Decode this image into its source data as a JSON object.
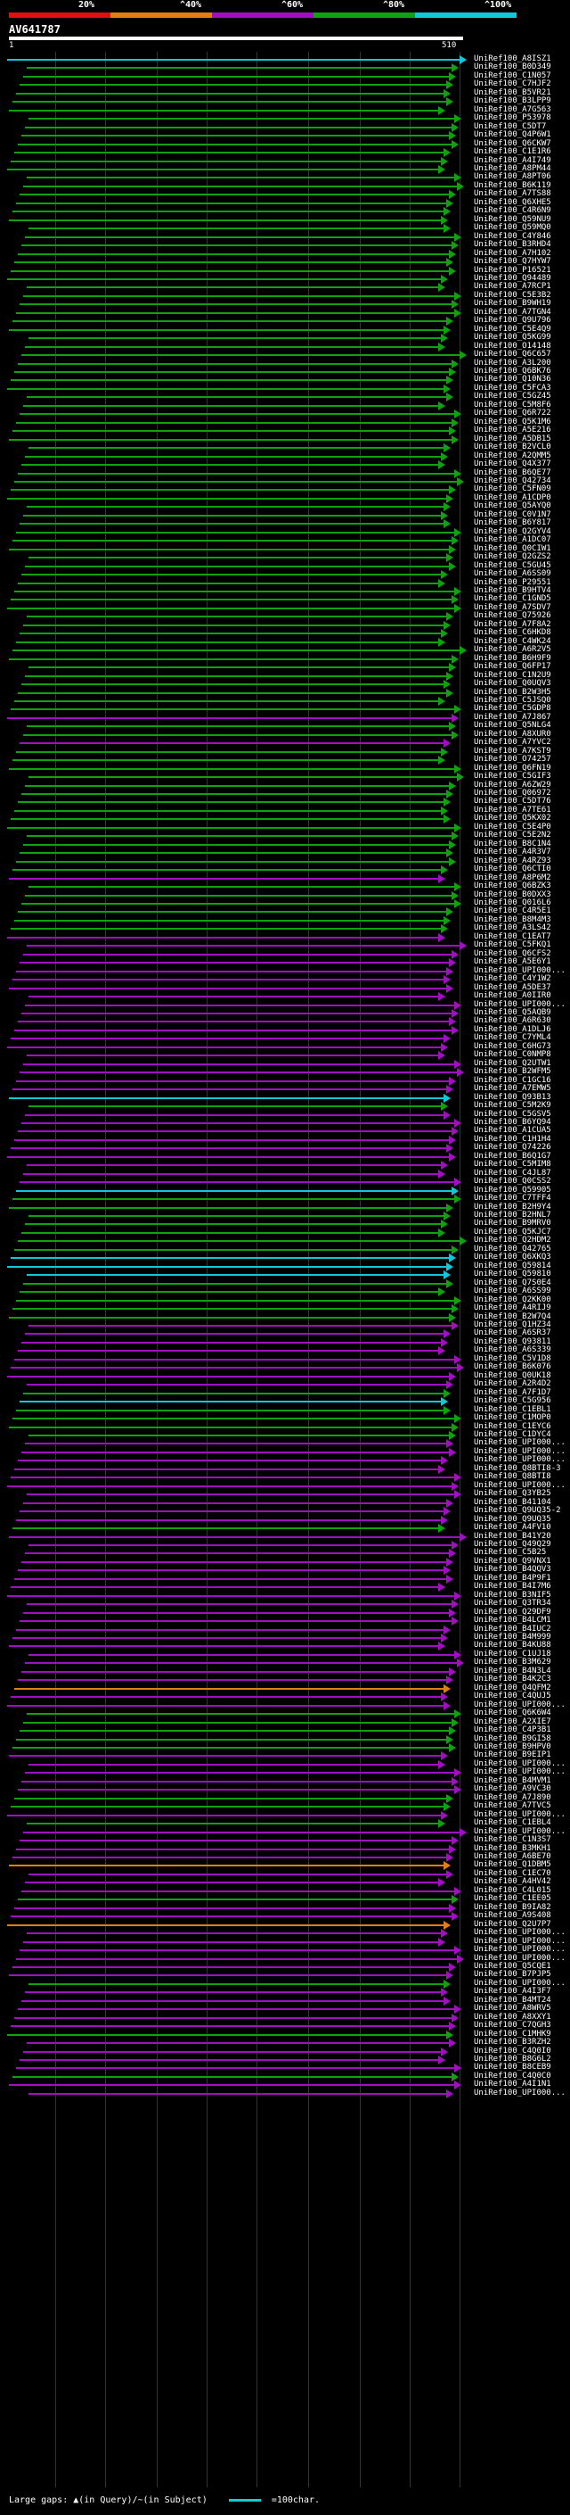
{
  "scale": {
    "labels": [
      "20%",
      "^40%",
      "^60%",
      "^80%",
      "^100%"
    ],
    "colors": [
      "#e01010",
      "#e08010",
      "#a010c0",
      "#10a010",
      "#10c8d8"
    ]
  },
  "query": {
    "accession": "AV641787",
    "start": "1",
    "end": "510"
  },
  "hits": [
    {
      "label": "UniRef100_A8ISZ1",
      "color": "#10c8d8"
    },
    {
      "label": "UniRef100_B0D349",
      "color": "#10a010"
    },
    {
      "label": "UniRef100_C1N057",
      "color": "#10a010"
    },
    {
      "label": "UniRef100_C7HJF2",
      "color": "#10a010"
    },
    {
      "label": "UniRef100_B5VR21",
      "color": "#10a010"
    },
    {
      "label": "UniRef100_B3LPP9",
      "color": "#10a010"
    },
    {
      "label": "UniRef100_A7G563",
      "color": "#10a010"
    },
    {
      "label": "UniRef100_P53978",
      "color": "#10a010"
    },
    {
      "label": "UniRef100_C5DT7",
      "color": "#10a010"
    },
    {
      "label": "UniRef100_Q4P6W1",
      "color": "#10a010"
    },
    {
      "label": "UniRef100_Q6CKW7",
      "color": "#10a010"
    },
    {
      "label": "UniRef100_C1E1R6",
      "color": "#10a010"
    },
    {
      "label": "UniRef100_A4I749",
      "color": "#10a010"
    },
    {
      "label": "UniRef100_A8PM44",
      "color": "#10a010"
    },
    {
      "label": "UniRef100_A8PT06",
      "color": "#10a010"
    },
    {
      "label": "UniRef100_B6K119",
      "color": "#10a010"
    },
    {
      "label": "UniRef100_A7TS88",
      "color": "#10a010"
    },
    {
      "label": "UniRef100_Q6XHE5",
      "color": "#10a010"
    },
    {
      "label": "UniRef100_C4R6N9",
      "color": "#10a010"
    },
    {
      "label": "UniRef100_Q59NU9",
      "color": "#10a010"
    },
    {
      "label": "UniRef100_Q59MQ0",
      "color": "#10a010"
    },
    {
      "label": "UniRef100_C4Y846",
      "color": "#10a010"
    },
    {
      "label": "UniRef100_B3RHD4",
      "color": "#10a010"
    },
    {
      "label": "UniRef100_A7H102",
      "color": "#10a010"
    },
    {
      "label": "UniRef100_Q7HYW7",
      "color": "#10a010"
    },
    {
      "label": "UniRef100_P16521",
      "color": "#10a010"
    },
    {
      "label": "UniRef100_Q94489",
      "color": "#10a010"
    },
    {
      "label": "UniRef100_A7RCP1",
      "color": "#10a010"
    },
    {
      "label": "UniRef100_C5E3B2",
      "color": "#10a010"
    },
    {
      "label": "UniRef100_B9WH19",
      "color": "#10a010"
    },
    {
      "label": "UniRef100_A7TGN4",
      "color": "#10a010"
    },
    {
      "label": "UniRef100_Q9U796",
      "color": "#10a010"
    },
    {
      "label": "UniRef100_C5E4Q9",
      "color": "#10a010"
    },
    {
      "label": "UniRef100_Q5KG99",
      "color": "#10a010"
    },
    {
      "label": "UniRef100_O14148",
      "color": "#10a010"
    },
    {
      "label": "UniRef100_Q6C657",
      "color": "#10a010"
    },
    {
      "label": "UniRef100_A3L200",
      "color": "#10a010"
    },
    {
      "label": "UniRef100_Q6BK76",
      "color": "#10a010"
    },
    {
      "label": "UniRef100_Q10N36",
      "color": "#10a010"
    },
    {
      "label": "UniRef100_C5FCA3",
      "color": "#10a010"
    },
    {
      "label": "UniRef100_C5GZ45",
      "color": "#10a010"
    },
    {
      "label": "UniRef100_C5M8F6",
      "color": "#10a010"
    },
    {
      "label": "UniRef100_Q6R722",
      "color": "#10a010"
    },
    {
      "label": "UniRef100_Q5K1M6",
      "color": "#10a010"
    },
    {
      "label": "UniRef100_A5E216",
      "color": "#10a010"
    },
    {
      "label": "UniRef100_A5DB15",
      "color": "#10a010"
    },
    {
      "label": "UniRef100_B2VCL0",
      "color": "#10a010"
    },
    {
      "label": "UniRef100_A2QMM5",
      "color": "#10a010"
    },
    {
      "label": "UniRef100_Q4X377",
      "color": "#10a010"
    },
    {
      "label": "UniRef100_B6QE77",
      "color": "#10a010"
    },
    {
      "label": "UniRef100_Q42734",
      "color": "#10a010"
    },
    {
      "label": "UniRef100_C5FN09",
      "color": "#10a010"
    },
    {
      "label": "UniRef100_A1CDP0",
      "color": "#10a010"
    },
    {
      "label": "UniRef100_Q5AYQ0",
      "color": "#10a010"
    },
    {
      "label": "UniRef100_C0V1N7",
      "color": "#10a010"
    },
    {
      "label": "UniRef100_B6Y817",
      "color": "#10a010"
    },
    {
      "label": "UniRef100_Q2GYV4",
      "color": "#10a010"
    },
    {
      "label": "UniRef100_A1DC07",
      "color": "#10a010"
    },
    {
      "label": "UniRef100_Q0CIW1",
      "color": "#10a010"
    },
    {
      "label": "UniRef100_Q2GZS2",
      "color": "#10a010"
    },
    {
      "label": "UniRef100_C5GU45",
      "color": "#10a010"
    },
    {
      "label": "UniRef100_A6SS09",
      "color": "#10a010"
    },
    {
      "label": "UniRef100_P29551",
      "color": "#10a010"
    },
    {
      "label": "UniRef100_B9HTV4",
      "color": "#10a010"
    },
    {
      "label": "UniRef100_C1GND5",
      "color": "#10a010"
    },
    {
      "label": "UniRef100_A7SDV7",
      "color": "#10a010"
    },
    {
      "label": "UniRef100_Q75926",
      "color": "#10a010"
    },
    {
      "label": "UniRef100_A7F8A2",
      "color": "#10a010"
    },
    {
      "label": "UniRef100_C6HKD8",
      "color": "#10a010"
    },
    {
      "label": "UniRef100_C4WK24",
      "color": "#10a010"
    },
    {
      "label": "UniRef100_A6R2V5",
      "color": "#10a010"
    },
    {
      "label": "UniRef100_B6H9F9",
      "color": "#10a010"
    },
    {
      "label": "UniRef100_Q6FP17",
      "color": "#10a010"
    },
    {
      "label": "UniRef100_C1N2U9",
      "color": "#10a010"
    },
    {
      "label": "UniRef100_Q0UQV3",
      "color": "#10a010"
    },
    {
      "label": "UniRef100_B2W3H5",
      "color": "#10a010"
    },
    {
      "label": "UniRef100_C5JSQ0",
      "color": "#10a010"
    },
    {
      "label": "UniRef100_C5GDP8",
      "color": "#10a010"
    },
    {
      "label": "UniRef100_A7J867",
      "color": "#a010c0"
    },
    {
      "label": "UniRef100_Q5NLG4",
      "color": "#10a010"
    },
    {
      "label": "UniRef100_A8XUR0",
      "color": "#10a010"
    },
    {
      "label": "UniRef100_A7YVC2",
      "color": "#a010c0"
    },
    {
      "label": "UniRef100_A7KST9",
      "color": "#10a010"
    },
    {
      "label": "UniRef100_O74257",
      "color": "#10a010"
    },
    {
      "label": "UniRef100_Q6FN19",
      "color": "#10a010"
    },
    {
      "label": "UniRef100_C5GIF3",
      "color": "#10a010"
    },
    {
      "label": "UniRef100_A6ZW29",
      "color": "#10a010"
    },
    {
      "label": "UniRef100_Q06972",
      "color": "#10a010"
    },
    {
      "label": "UniRef100_C5DT76",
      "color": "#10a010"
    },
    {
      "label": "UniRef100_A7TE61",
      "color": "#10a010"
    },
    {
      "label": "UniRef100_Q5KX02",
      "color": "#10a010"
    },
    {
      "label": "UniRef100_C5E4P0",
      "color": "#10a010"
    },
    {
      "label": "UniRef100_C5E2N2",
      "color": "#10a010"
    },
    {
      "label": "UniRef100_B8C1N4",
      "color": "#10a010"
    },
    {
      "label": "UniRef100_A4R3V7",
      "color": "#10a010"
    },
    {
      "label": "UniRef100_A4RZ93",
      "color": "#10a010"
    },
    {
      "label": "UniRef100_Q6CTI0",
      "color": "#10a010"
    },
    {
      "label": "UniRef100_A8P6M2",
      "color": "#a010c0"
    },
    {
      "label": "UniRef100_Q6BZK3",
      "color": "#10a010"
    },
    {
      "label": "UniRef100_B0DXX3",
      "color": "#10a010"
    },
    {
      "label": "UniRef100_Q016L6",
      "color": "#10a010"
    },
    {
      "label": "UniRef100_C4R5E1",
      "color": "#10a010"
    },
    {
      "label": "UniRef100_B8M4M3",
      "color": "#10a010"
    },
    {
      "label": "UniRef100_A3LS42",
      "color": "#10a010"
    },
    {
      "label": "UniRef100_C1EAT7",
      "color": "#a010c0"
    },
    {
      "label": "UniRef100_C5FKQ1",
      "color": "#a010c0"
    },
    {
      "label": "UniRef100_Q6CFS2",
      "color": "#a010c0"
    },
    {
      "label": "UniRef100_A5E6Y1",
      "color": "#a010c0"
    },
    {
      "label": "UniRef100_UPI000...",
      "color": "#a010c0"
    },
    {
      "label": "UniRef100_C4Y1W2",
      "color": "#a010c0"
    },
    {
      "label": "UniRef100_A5DE37",
      "color": "#a010c0"
    },
    {
      "label": "UniRef100_A0IIR0",
      "color": "#a010c0"
    },
    {
      "label": "UniRef100_UPI000...",
      "color": "#a010c0"
    },
    {
      "label": "UniRef100_Q5AQB9",
      "color": "#a010c0"
    },
    {
      "label": "UniRef100_A6R630",
      "color": "#a010c0"
    },
    {
      "label": "UniRef100_A1DLJ6",
      "color": "#a010c0"
    },
    {
      "label": "UniRef100_C7YML4",
      "color": "#a010c0"
    },
    {
      "label": "UniRef100_C6HG73",
      "color": "#a010c0"
    },
    {
      "label": "UniRef100_C0NMP8",
      "color": "#a010c0"
    },
    {
      "label": "UniRef100_Q2UTW1",
      "color": "#a010c0"
    },
    {
      "label": "UniRef100_B2WFM5",
      "color": "#a010c0"
    },
    {
      "label": "UniRef100_C1GC16",
      "color": "#a010c0"
    },
    {
      "label": "UniRef100_A7EMW5",
      "color": "#a010c0"
    },
    {
      "label": "UniRef100_Q93B13",
      "color": "#10c8d8"
    },
    {
      "label": "UniRef100_C5M2K9",
      "color": "#10a010"
    },
    {
      "label": "UniRef100_C5GSV5",
      "color": "#a010c0"
    },
    {
      "label": "UniRef100_B6YQ94",
      "color": "#a010c0"
    },
    {
      "label": "UniRef100_A1CUA5",
      "color": "#a010c0"
    },
    {
      "label": "UniRef100_C1H1H4",
      "color": "#a010c0"
    },
    {
      "label": "UniRef100_Q74226",
      "color": "#a010c0"
    },
    {
      "label": "UniRef100_B6Q1G7",
      "color": "#a010c0"
    },
    {
      "label": "UniRef100_C5MIM8",
      "color": "#a010c0"
    },
    {
      "label": "UniRef100_C4JL87",
      "color": "#a010c0"
    },
    {
      "label": "UniRef100_Q0CSS2",
      "color": "#a010c0"
    },
    {
      "label": "UniRef100_Q59905",
      "color": "#10c8d8"
    },
    {
      "label": "UniRef100_C7TFF4",
      "color": "#10a010"
    },
    {
      "label": "UniRef100_B2H9Y4",
      "color": "#10a010"
    },
    {
      "label": "UniRef100_B2HNL7",
      "color": "#10a010"
    },
    {
      "label": "UniRef100_B9MRV0",
      "color": "#10a010"
    },
    {
      "label": "UniRef100_Q5KJC7",
      "color": "#10a010"
    },
    {
      "label": "UniRef100_Q2HDM2",
      "color": "#10a010"
    },
    {
      "label": "UniRef100_Q42765",
      "color": "#10a010"
    },
    {
      "label": "UniRef100_Q6XKQ3",
      "color": "#10c8d8"
    },
    {
      "label": "UniRef100_Q59814",
      "color": "#10c8d8"
    },
    {
      "label": "UniRef100_Q59810",
      "color": "#10c8d8"
    },
    {
      "label": "UniRef100_Q7S0E4",
      "color": "#10a010"
    },
    {
      "label": "UniRef100_A6SS99",
      "color": "#10a010"
    },
    {
      "label": "UniRef100_Q2KK00",
      "color": "#10a010"
    },
    {
      "label": "UniRef100_A4RIJ9",
      "color": "#10a010"
    },
    {
      "label": "UniRef100_B2W7Q4",
      "color": "#10a010"
    },
    {
      "label": "UniRef100_Q1HZ34",
      "color": "#a010c0"
    },
    {
      "label": "UniRef100_A6SR37",
      "color": "#a010c0"
    },
    {
      "label": "UniRef100_Q93811",
      "color": "#a010c0"
    },
    {
      "label": "UniRef100_A6S339",
      "color": "#a010c0"
    },
    {
      "label": "UniRef100_C5V1D8",
      "color": "#a010c0"
    },
    {
      "label": "UniRef100_B6K076",
      "color": "#a010c0"
    },
    {
      "label": "UniRef100_Q0UK18",
      "color": "#a010c0"
    },
    {
      "label": "UniRef100_A2R4D2",
      "color": "#a010c0"
    },
    {
      "label": "UniRef100_A7F1D7",
      "color": "#10a010"
    },
    {
      "label": "UniRef100_C5G956",
      "color": "#10c8d8"
    },
    {
      "label": "UniRef100_C1EBL1",
      "color": "#10a010"
    },
    {
      "label": "UniRef100_C1MOP0",
      "color": "#10a010"
    },
    {
      "label": "UniRef100_C1EYC6",
      "color": "#10a010"
    },
    {
      "label": "UniRef100_C1DYC4",
      "color": "#10a010"
    },
    {
      "label": "UniRef100_UPI000...",
      "color": "#a010c0"
    },
    {
      "label": "UniRef100_UPI000...",
      "color": "#a010c0"
    },
    {
      "label": "UniRef100_UPI000...",
      "color": "#a010c0"
    },
    {
      "label": "UniRef100_Q8BTI8-3",
      "color": "#a010c0"
    },
    {
      "label": "UniRef100_Q8BTI8",
      "color": "#a010c0"
    },
    {
      "label": "UniRef100_UPI000...",
      "color": "#a010c0"
    },
    {
      "label": "UniRef100_Q3YB25",
      "color": "#a010c0"
    },
    {
      "label": "UniRef100_B41104",
      "color": "#a010c0"
    },
    {
      "label": "UniRef100_Q9UQ35-2",
      "color": "#a010c0"
    },
    {
      "label": "UniRef100_Q9UQ35",
      "color": "#a010c0"
    },
    {
      "label": "UniRef100_A4FV10",
      "color": "#10a010"
    },
    {
      "label": "UniRef100_B41Y20",
      "color": "#a010c0"
    },
    {
      "label": "UniRef100_Q49Q29",
      "color": "#a010c0"
    },
    {
      "label": "UniRef100_C5B25",
      "color": "#a010c0"
    },
    {
      "label": "UniRef100_Q9VNX1",
      "color": "#a010c0"
    },
    {
      "label": "UniRef100_B4QQV3",
      "color": "#a010c0"
    },
    {
      "label": "UniRef100_B4P9F1",
      "color": "#a010c0"
    },
    {
      "label": "UniRef100_B4I7M6",
      "color": "#a010c0"
    },
    {
      "label": "UniRef100_B3NIF5",
      "color": "#a010c0"
    },
    {
      "label": "UniRef100_Q3TR34",
      "color": "#a010c0"
    },
    {
      "label": "UniRef100_Q29DF9",
      "color": "#a010c0"
    },
    {
      "label": "UniRef100_B4LCM1",
      "color": "#a010c0"
    },
    {
      "label": "UniRef100_B4IUC2",
      "color": "#a010c0"
    },
    {
      "label": "UniRef100_B4M999",
      "color": "#a010c0"
    },
    {
      "label": "UniRef100_B4KU88",
      "color": "#a010c0"
    },
    {
      "label": "UniRef100_C1UJ18",
      "color": "#a010c0"
    },
    {
      "label": "UniRef100_B3M629",
      "color": "#a010c0"
    },
    {
      "label": "UniRef100_B4N3L4",
      "color": "#a010c0"
    },
    {
      "label": "UniRef100_B4K2C3",
      "color": "#a010c0"
    },
    {
      "label": "UniRef100_Q4QFM2",
      "color": "#e08010"
    },
    {
      "label": "UniRef100_C4QUJ5",
      "color": "#a010c0"
    },
    {
      "label": "UniRef100_UPI000...",
      "color": "#a010c0"
    },
    {
      "label": "UniRef100_Q6K6W4",
      "color": "#10a010"
    },
    {
      "label": "UniRef100_A2XIE7",
      "color": "#10a010"
    },
    {
      "label": "UniRef100_C4P3B1",
      "color": "#10a010"
    },
    {
      "label": "UniRef100_B9GI58",
      "color": "#10a010"
    },
    {
      "label": "UniRef100_B9HPV0",
      "color": "#10a010"
    },
    {
      "label": "UniRef100_B9EIP1",
      "color": "#a010c0"
    },
    {
      "label": "UniRef100_UPI000...",
      "color": "#a010c0"
    },
    {
      "label": "UniRef100_UPI000...",
      "color": "#a010c0"
    },
    {
      "label": "UniRef100_B4MVM1",
      "color": "#a010c0"
    },
    {
      "label": "UniRef100_A9VC30",
      "color": "#a010c0"
    },
    {
      "label": "UniRef100_A7J890",
      "color": "#10a010"
    },
    {
      "label": "UniRef100_A7TVC5",
      "color": "#10a010"
    },
    {
      "label": "UniRef100_UPI000...",
      "color": "#a010c0"
    },
    {
      "label": "UniRef100_C1EBL4",
      "color": "#10a010"
    },
    {
      "label": "UniRef100_UPI000...",
      "color": "#a010c0"
    },
    {
      "label": "UniRef100_C1N3S7",
      "color": "#a010c0"
    },
    {
      "label": "UniRef100_B3MKH1",
      "color": "#a010c0"
    },
    {
      "label": "UniRef100_A6BE70",
      "color": "#a010c0"
    },
    {
      "label": "UniRef100_Q1DBM5",
      "color": "#e08010"
    },
    {
      "label": "UniRef100_C1EC70",
      "color": "#a010c0"
    },
    {
      "label": "UniRef100_A4HV42",
      "color": "#a010c0"
    },
    {
      "label": "UniRef100_C4L015",
      "color": "#a010c0"
    },
    {
      "label": "UniRef100_C1EE05",
      "color": "#10a010"
    },
    {
      "label": "UniRef100_B9IA82",
      "color": "#a010c0"
    },
    {
      "label": "UniRef100_A9S408",
      "color": "#a010c0"
    },
    {
      "label": "UniRef100_Q2U7P7",
      "color": "#e08010"
    },
    {
      "label": "UniRef100_UPI000...",
      "color": "#a010c0"
    },
    {
      "label": "UniRef100_UPI000...",
      "color": "#a010c0"
    },
    {
      "label": "UniRef100_UPI000...",
      "color": "#a010c0"
    },
    {
      "label": "UniRef100_UPI000...",
      "color": "#a010c0"
    },
    {
      "label": "UniRef100_Q5CQE1",
      "color": "#a010c0"
    },
    {
      "label": "UniRef100_B7PJP5",
      "color": "#a010c0"
    },
    {
      "label": "UniRef100_UPI000...",
      "color": "#10a010"
    },
    {
      "label": "UniRef100_A4I3F7",
      "color": "#a010c0"
    },
    {
      "label": "UniRef100_B4MT24",
      "color": "#a010c0"
    },
    {
      "label": "UniRef100_A8WRV5",
      "color": "#a010c0"
    },
    {
      "label": "UniRef100_A8XXY1",
      "color": "#a010c0"
    },
    {
      "label": "UniRef100_C7QGH3",
      "color": "#a010c0"
    },
    {
      "label": "UniRef100_C1MHK9",
      "color": "#10a010"
    },
    {
      "label": "UniRef100_B3RZH2",
      "color": "#a010c0"
    },
    {
      "label": "UniRef100_C4Q0I0",
      "color": "#a010c0"
    },
    {
      "label": "UniRef100_B8G6L2",
      "color": "#a010c0"
    },
    {
      "label": "UniRef100_B8CEB9",
      "color": "#a010c0"
    },
    {
      "label": "UniRef100_C4Q0C0",
      "color": "#10a010"
    },
    {
      "label": "UniRef100_A4I1N1",
      "color": "#a010c0"
    },
    {
      "label": "UniRef100_UPI000...",
      "color": "#a010c0"
    }
  ],
  "footer": {
    "gaps_text": "Large gaps: ▲(in Query)/~(in Subject)",
    "legend_text": "=100char."
  }
}
